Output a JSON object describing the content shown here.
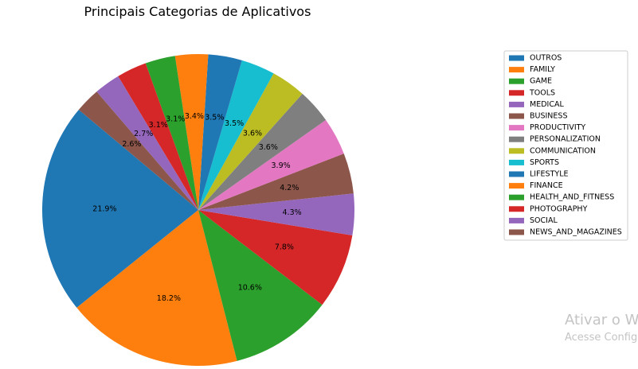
{
  "chart_data": {
    "type": "pie",
    "title": "Principais Categorias de Aplicativos",
    "categories": [
      "OUTROS",
      "FAMILY",
      "GAME",
      "TOOLS",
      "MEDICAL",
      "BUSINESS",
      "PRODUCTIVITY",
      "PERSONALIZATION",
      "COMMUNICATION",
      "SPORTS",
      "LIFESTYLE",
      "FINANCE",
      "HEALTH_AND_FITNESS",
      "PHOTOGRAPHY",
      "SOCIAL",
      "NEWS_AND_MAGAZINES"
    ],
    "values": [
      21.9,
      18.2,
      10.6,
      7.8,
      4.3,
      4.2,
      3.9,
      3.6,
      3.6,
      3.5,
      3.5,
      3.4,
      3.1,
      3.1,
      2.7,
      2.6
    ],
    "labels": [
      "21.9%",
      "18.2%",
      "10.6%",
      "7.8%",
      "4.3%",
      "4.2%",
      "3.9%",
      "3.6%",
      "3.6%",
      "3.5%",
      "3.5%",
      "3.4%",
      "3.1%",
      "3.1%",
      "2.7%",
      "2.6%"
    ],
    "colors": [
      "#1f77b4",
      "#ff7f0e",
      "#2ca02c",
      "#d62728",
      "#9467bd",
      "#8c564b",
      "#e377c2",
      "#7f7f7f",
      "#bcbd22",
      "#17becf",
      "#1f77b4",
      "#ff7f0e",
      "#2ca02c",
      "#d62728",
      "#9467bd",
      "#8c564b"
    ],
    "start_angle": 140,
    "direction": "counterclockwise",
    "legend": "right"
  },
  "watermark": {
    "title": "Ativar o W",
    "subtitle": "Acesse Config"
  }
}
